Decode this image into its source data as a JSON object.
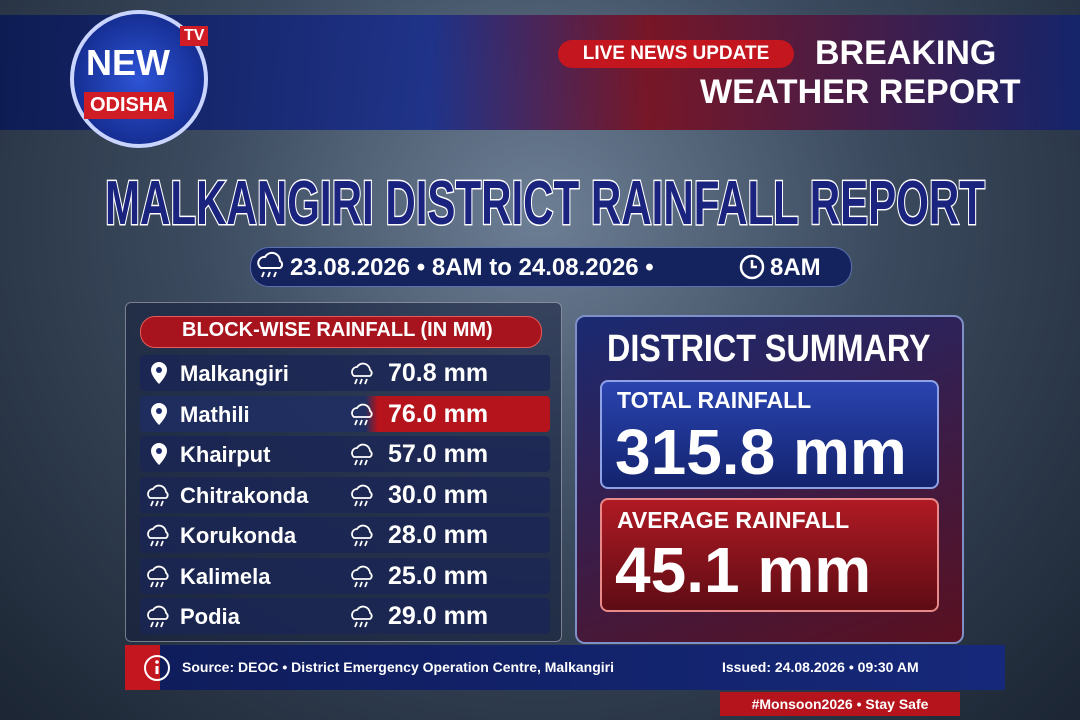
{
  "header": {
    "logo_main": "NEW",
    "logo_tv": "TV",
    "logo_sub": "ODISHA",
    "live": "LIVE NEWS UPDATE",
    "breaking": "BREAKING",
    "weather": "WEATHER REPORT"
  },
  "title": "MALKANGIRI DISTRICT RAINFALL REPORT",
  "period": {
    "text": "23.08.2026 • 8AM to 24.08.2026 •",
    "time": "8AM"
  },
  "table": {
    "heading": "BLOCK-WISE RAINFALL (IN MM)",
    "highlight_row": 1,
    "rows": [
      [
        "Malkangiri",
        "70.8 mm"
      ],
      [
        "Mathili",
        "76.0 mm"
      ],
      [
        "Khairput",
        "57.0 mm"
      ],
      [
        "Chitrakonda",
        "30.0 mm"
      ],
      [
        "Korukonda",
        "28.0 mm"
      ],
      [
        "Kalimela",
        "25.0 mm"
      ],
      [
        "Podia",
        "29.0 mm"
      ]
    ]
  },
  "summary": {
    "heading": "DISTRICT SUMMARY",
    "total_label": "TOTAL RAINFALL",
    "total_value": "315.8 mm",
    "average_label": "AVERAGE RAINFALL",
    "average_value": "45.1 mm"
  },
  "footer": {
    "source": "Source: DEOC • District Emergency Operation Centre, Malkangiri",
    "issued": "Issued: 24.08.2026 • 09:30 AM",
    "hashtag": "#Monsoon2026 • Stay Safe"
  }
}
